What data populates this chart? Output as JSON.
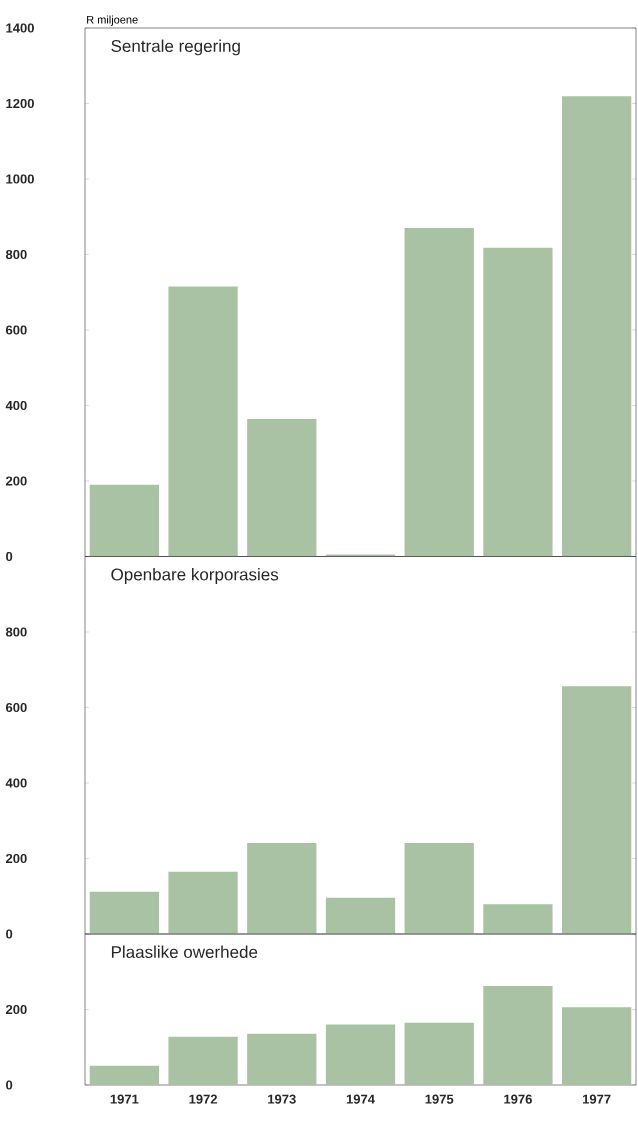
{
  "chart_data": [
    {
      "type": "bar",
      "title": "Sentrale regering",
      "ylabel": "R miljoene",
      "categories": [
        "1971",
        "1972",
        "1973",
        "1974",
        "1975",
        "1976",
        "1977"
      ],
      "values": [
        190,
        715,
        364,
        5,
        870,
        818,
        1219
      ],
      "color": "#a9c2a4",
      "ylim": [
        0,
        1400
      ],
      "yticks": [
        0,
        200,
        400,
        600,
        800,
        1000,
        1200,
        1400
      ],
      "tick_labels": "y"
    },
    {
      "type": "bar",
      "title": "Openbare korporasies",
      "categories": [
        "1971",
        "1972",
        "1973",
        "1974",
        "1975",
        "1976",
        "1977"
      ],
      "values": [
        112,
        165,
        241,
        96,
        241,
        79,
        656
      ],
      "color": "#a9c2a4",
      "ylim": [
        0,
        1000
      ],
      "yticks": [
        0,
        200,
        400,
        600,
        800
      ],
      "tick_labels": "y"
    },
    {
      "type": "bar",
      "title": "Plaaslike owerhede",
      "categories": [
        "1971",
        "1972",
        "1973",
        "1974",
        "1975",
        "1976",
        "1977"
      ],
      "values": [
        51,
        128,
        136,
        160,
        165,
        262,
        206
      ],
      "color": "#a9c2a4",
      "ylim": [
        0,
        400
      ],
      "yticks": [
        0,
        200
      ]
    }
  ]
}
